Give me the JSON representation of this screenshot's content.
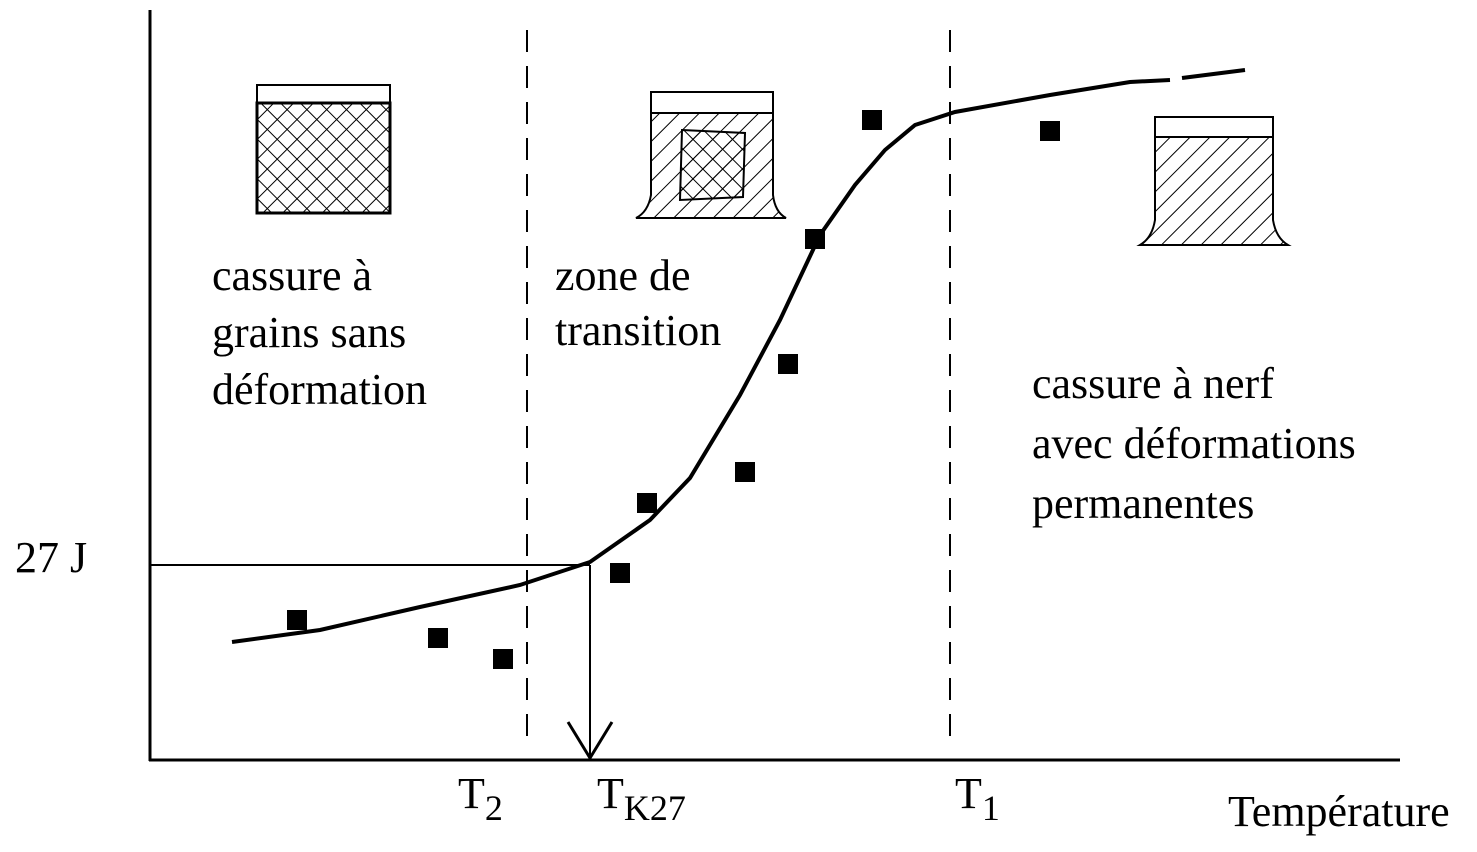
{
  "y_axis": {
    "label": "27 J"
  },
  "x_axis": {
    "label": "Température",
    "markers": [
      {
        "main": "T",
        "sub": "2"
      },
      {
        "main": "T",
        "sub": "K27"
      },
      {
        "main": "T",
        "sub": "1"
      }
    ]
  },
  "zones": [
    {
      "lines": [
        "cassure à",
        "grains sans",
        "déformation"
      ]
    },
    {
      "lines": [
        "zone de",
        "transition"
      ]
    },
    {
      "lines": [
        "cassure à nerf",
        "avec déformations",
        "permanentes"
      ]
    }
  ]
}
